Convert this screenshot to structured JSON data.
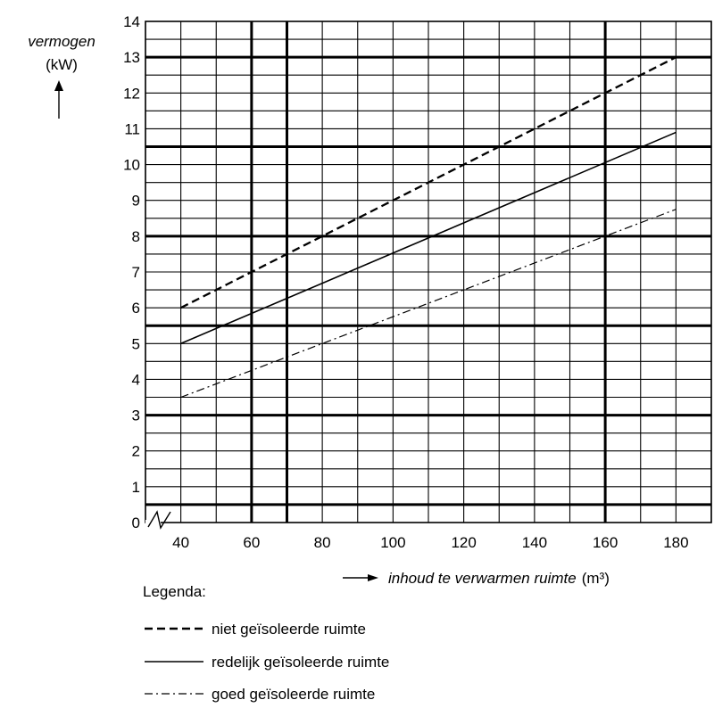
{
  "chart_data": {
    "type": "line",
    "ylabel": {
      "name": "vermogen",
      "unit": "(kW)"
    },
    "xlabel": {
      "name": "inhoud te verwarmen ruimte",
      "unit": "(m³)"
    },
    "xlim": [
      30,
      190
    ],
    "ylim": [
      0,
      14
    ],
    "x_ticks": [
      "40",
      "60",
      "80",
      "100",
      "120",
      "140",
      "160",
      "180"
    ],
    "y_ticks": [
      "0",
      "1",
      "2",
      "3",
      "4",
      "5",
      "6",
      "7",
      "8",
      "9",
      "10",
      "11",
      "12",
      "13",
      "14"
    ],
    "grid": true,
    "axis_break": true,
    "series": [
      {
        "name": "niet geïsoleerde ruimte",
        "style": "dashed",
        "x": [
          40,
          180
        ],
        "y": [
          6,
          13
        ]
      },
      {
        "name": "redelijk geïsoleerde ruimte",
        "style": "solid",
        "x": [
          40,
          180
        ],
        "y": [
          5,
          10.9
        ]
      },
      {
        "name": "goed geïsoleerde ruimte",
        "style": "dash-dot",
        "x": [
          40,
          180
        ],
        "y": [
          3.5,
          8.75
        ]
      }
    ],
    "legend": {
      "title": "Legenda:",
      "placement": "bottom-left"
    }
  }
}
